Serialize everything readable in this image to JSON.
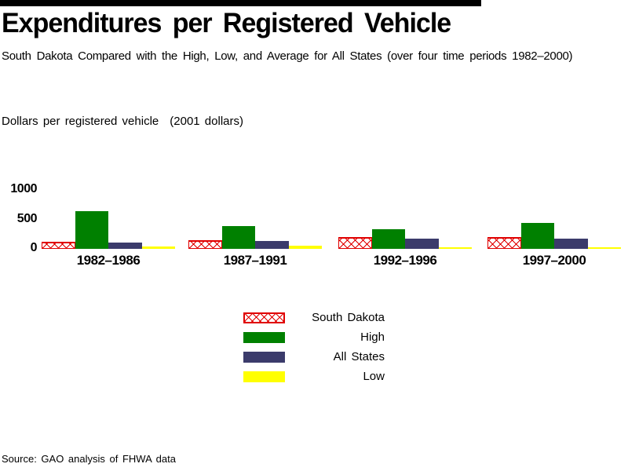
{
  "header": {
    "title": "Expenditures per Registered Vehicle",
    "subtitle": "South Dakota Compared with the High, Low, and Average for All States (over four time periods 1982–2000)"
  },
  "axis": {
    "unit_label": "Dollars per registered vehicle",
    "unit_note": "(2001 dollars)",
    "y_ticks": [
      "1000",
      "500",
      "0"
    ]
  },
  "chart_data": {
    "type": "bar",
    "title": "Expenditures per Registered Vehicle",
    "subtitle": "South Dakota Compared with the High, Low, and Average for All States (over four time periods 1982–2000)",
    "ylabel": "Dollars per registered vehicle (2001 dollars)",
    "ylim": [
      0,
      1000
    ],
    "grid": false,
    "legend_position": "bottom-center",
    "categories": [
      "1982–1986",
      "1987–1991",
      "1992–1996",
      "1997–2000"
    ],
    "series": [
      {
        "name": "South Dakota",
        "style": "red-crosshatch",
        "color": "#e00000",
        "values": [
          120,
          140,
          190,
          190
        ]
      },
      {
        "name": "High",
        "style": "solid",
        "color": "#008000",
        "values": [
          620,
          380,
          330,
          430
        ]
      },
      {
        "name": "All States",
        "style": "solid",
        "color": "#3b3b6b",
        "values": [
          110,
          135,
          165,
          170
        ]
      },
      {
        "name": "Low",
        "style": "solid",
        "color": "#ffff00",
        "values": [
          45,
          55,
          25,
          30
        ]
      }
    ]
  },
  "legend": {
    "items": [
      "South Dakota",
      "High",
      "All States",
      "Low"
    ]
  },
  "footer": {
    "source": "Source: GAO analysis of FHWA data"
  }
}
